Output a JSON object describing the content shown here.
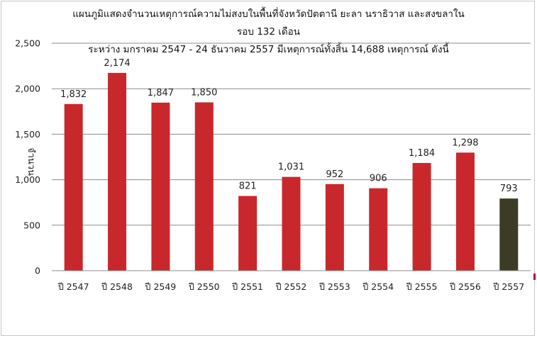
{
  "chart_data": {
    "type": "bar",
    "title": "แผนภูมิแสดงจำนวนเหตุการณ์ความไม่สงบในพื้นที่จังหวัดปัตตานี ยะลา นราธิวาส และสงขลาใน",
    "subtitle_1": "รอบ 132 เดือน",
    "subtitle_2": "ระหว่าง มกราคม 2547 - 24 ธันวาคม 2557   มีเหตุการณ์ทั้งสิ้น 14,688 เหตุการณ์ ดังนี้",
    "ylabel": "จำนวน",
    "xlabel": "",
    "ylim": [
      0,
      2500
    ],
    "yticks": [
      0,
      500,
      1000,
      1500,
      2000,
      2500
    ],
    "ytick_labels": [
      "0",
      "500",
      "1,000",
      "1,500",
      "2,000",
      "2,500"
    ],
    "grid": true,
    "categories": [
      "ปี 2547",
      "ปี 2548",
      "ปี 2549",
      "ปี 2550",
      "ปี 2551",
      "ปี 2552",
      "ปี 2553",
      "ปี 2554",
      "ปี 2555",
      "ปี 2556",
      "ปี 2557"
    ],
    "values": [
      1832,
      2174,
      1847,
      1850,
      821,
      1031,
      952,
      906,
      1184,
      1298,
      793
    ],
    "value_labels": [
      "1,832",
      "2,174",
      "1,847",
      "1,850",
      "821",
      "1,031",
      "952",
      "906",
      "1,184",
      "1,298",
      "793"
    ],
    "bar_colors": [
      "#c8282c",
      "#c8282c",
      "#c8282c",
      "#c8282c",
      "#c8282c",
      "#c8282c",
      "#c8282c",
      "#c8282c",
      "#c8282c",
      "#c8282c",
      "#3b3b26"
    ],
    "grid_color": "#8c8c8c"
  }
}
